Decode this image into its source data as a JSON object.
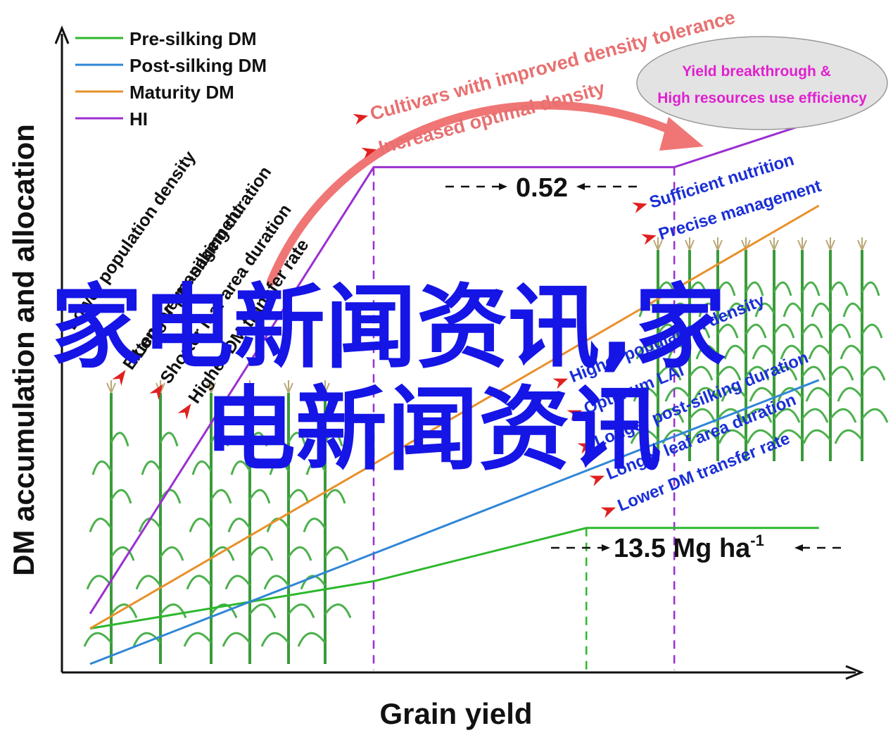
{
  "chart_data": {
    "type": "line",
    "xlabel": "Grain yield",
    "ylabel": "DM accumulation and allocation",
    "legend_position": "top-left",
    "series": [
      {
        "name": "Pre-silking DM",
        "color": "#2db82d",
        "x": [
          0,
          1,
          1.75,
          2.57
        ],
        "y": [
          0.12,
          0.28,
          0.46,
          0.46
        ]
      },
      {
        "name": "Post-silking DM",
        "color": "#2f86d6",
        "x": [
          0,
          2.57
        ],
        "y": [
          0.0,
          0.96
        ]
      },
      {
        "name": "Maturity DM",
        "color": "#e8902a",
        "x": [
          0,
          2.57
        ],
        "y": [
          0.12,
          1.55
        ]
      },
      {
        "name": "HI",
        "color": "#9b2fd2",
        "x": [
          0,
          1,
          2.06,
          2.57
        ],
        "y": [
          0.17,
          1.68,
          1.68,
          1.84
        ]
      }
    ],
    "markers": [
      {
        "x": 1.0,
        "color": "#9b2fd2",
        "style": "dashed"
      },
      {
        "x": 1.75,
        "color": "#2db82d",
        "style": "dashed"
      },
      {
        "x": 2.06,
        "color": "#9b2fd2",
        "style": "dashed"
      }
    ],
    "annotations": {
      "hi_value": "0.52",
      "dm_value": "13.5 Mg ha",
      "dm_superscript": "-1",
      "curved_arrow_labels": [
        "Cultivars with improved density tolerance",
        "Increased optimal density"
      ],
      "ellipse_lines": [
        "Yield breakthrough &",
        "High resources use efficiency"
      ],
      "left_factors": [
        "Lower population density",
        "Extensive management",
        "Longer pre-silking duration",
        "Shorter leaf area duration",
        "Higher DM transfer rate"
      ],
      "right_top_factors": [
        "Sufficient nutrition",
        "Precise management"
      ],
      "right_bottom_factors": [
        "Higher population density",
        "Optimum LAI",
        "Longer post-silking duration",
        "Longer leaf area duration",
        "Lower DM transfer rate"
      ]
    },
    "watermark_lines": [
      "家电新闻资讯,家",
      "电新闻资讯"
    ],
    "colors": {
      "arrow": "#f07575",
      "ellipse_fill": "#e3e3e3",
      "watermark": "#1515e6"
    }
  }
}
